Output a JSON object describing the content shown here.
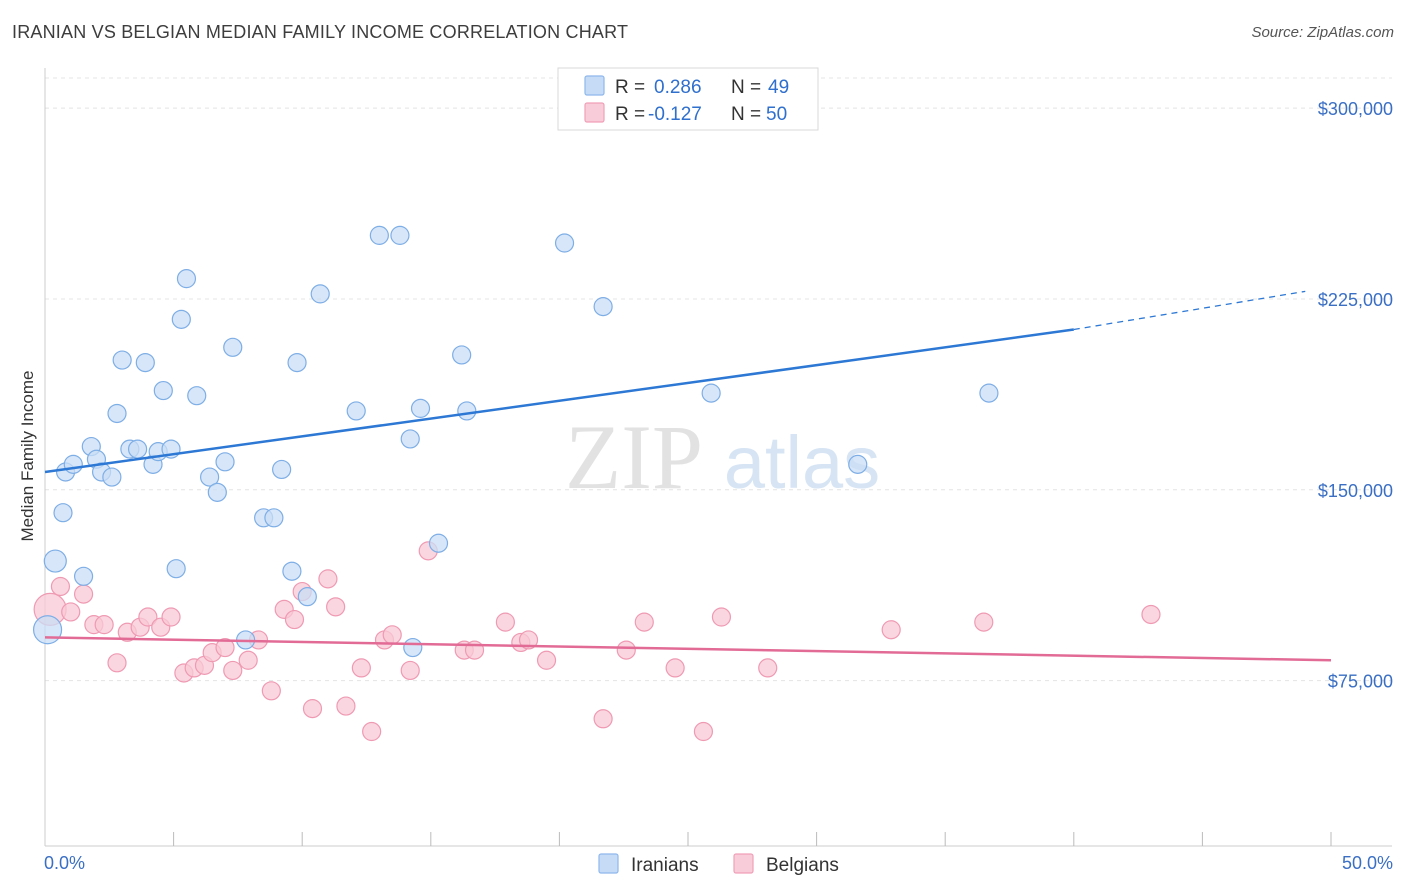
{
  "title": "IRANIAN VS BELGIAN MEDIAN FAMILY INCOME CORRELATION CHART",
  "source": "Source: ZipAtlas.com",
  "watermark": {
    "zip": "ZIP",
    "atlas": "atlas"
  },
  "chart_data": {
    "type": "scatter",
    "ylabel": "Median Family Income",
    "xlabel": "",
    "xlim": [
      0,
      50
    ],
    "ylim": [
      10000,
      315000
    ],
    "x_tick_labels": [
      "0.0%",
      "50.0%"
    ],
    "y_ticks": [
      75000,
      150000,
      225000,
      300000
    ],
    "y_tick_labels": [
      "$75,000",
      "$150,000",
      "$225,000",
      "$300,000"
    ],
    "grid": true,
    "legend": {
      "position": "top-center",
      "entries": [
        {
          "r_label": "R =",
          "r": "0.286",
          "n_label": "N =",
          "n": "49",
          "color": "#8fb8ec",
          "fill": "#c5dbf6"
        },
        {
          "r_label": "R =",
          "r": "-0.127",
          "n_label": "N =",
          "n": "50",
          "color": "#f0a0b8",
          "fill": "#f9ccd9"
        }
      ]
    },
    "series": [
      {
        "name": "Iranians",
        "color": "#7eaee6",
        "fill": "#c9ddf5",
        "line_color": "#2d78d4",
        "trend": {
          "x0": 0,
          "y0": 157000,
          "x1": 40,
          "y1": 213000,
          "dash_x1": 49,
          "dash_y1": 228000
        },
        "points": [
          [
            0.1,
            95000,
            14
          ],
          [
            0.4,
            122000,
            11
          ],
          [
            0.7,
            141000,
            9
          ],
          [
            0.8,
            157000,
            9
          ],
          [
            1.1,
            160000,
            9
          ],
          [
            1.5,
            116000,
            9
          ],
          [
            1.8,
            167000,
            9
          ],
          [
            2.0,
            162000,
            9
          ],
          [
            2.2,
            157000,
            9
          ],
          [
            2.6,
            155000,
            9
          ],
          [
            2.8,
            180000,
            9
          ],
          [
            3.0,
            201000,
            9
          ],
          [
            3.3,
            166000,
            9
          ],
          [
            3.6,
            166000,
            9
          ],
          [
            3.9,
            200000,
            9
          ],
          [
            4.2,
            160000,
            9
          ],
          [
            4.4,
            165000,
            9
          ],
          [
            4.6,
            189000,
            9
          ],
          [
            4.9,
            166000,
            9
          ],
          [
            5.1,
            119000,
            9
          ],
          [
            5.3,
            217000,
            9
          ],
          [
            5.5,
            233000,
            9
          ],
          [
            5.9,
            187000,
            9
          ],
          [
            6.4,
            155000,
            9
          ],
          [
            6.7,
            149000,
            9
          ],
          [
            7.0,
            161000,
            9
          ],
          [
            7.3,
            206000,
            9
          ],
          [
            7.8,
            91000,
            9
          ],
          [
            8.5,
            139000,
            9
          ],
          [
            8.9,
            139000,
            9
          ],
          [
            9.2,
            158000,
            9
          ],
          [
            9.6,
            118000,
            9
          ],
          [
            9.8,
            200000,
            9
          ],
          [
            10.2,
            108000,
            9
          ],
          [
            10.7,
            227000,
            9
          ],
          [
            12.1,
            181000,
            9
          ],
          [
            13.0,
            250000,
            9
          ],
          [
            13.8,
            250000,
            9
          ],
          [
            14.2,
            170000,
            9
          ],
          [
            14.3,
            88000,
            9
          ],
          [
            14.6,
            182000,
            9
          ],
          [
            15.3,
            129000,
            9
          ],
          [
            16.2,
            203000,
            9
          ],
          [
            16.4,
            181000,
            9
          ],
          [
            20.2,
            247000,
            9
          ],
          [
            21.7,
            222000,
            9
          ],
          [
            25.9,
            188000,
            9
          ],
          [
            31.6,
            160000,
            9
          ],
          [
            36.7,
            188000,
            9
          ]
        ]
      },
      {
        "name": "Belgians",
        "color": "#ef9ab3",
        "fill": "#f8c8d6",
        "line_color": "#e26b96",
        "trend": {
          "x0": 0,
          "y0": 92000,
          "x1": 50,
          "y1": 83000
        },
        "points": [
          [
            0.2,
            103000,
            16
          ],
          [
            0.6,
            112000,
            9
          ],
          [
            1.0,
            102000,
            9
          ],
          [
            1.5,
            109000,
            9
          ],
          [
            1.9,
            97000,
            9
          ],
          [
            2.3,
            97000,
            9
          ],
          [
            2.8,
            82000,
            9
          ],
          [
            3.2,
            94000,
            9
          ],
          [
            3.7,
            96000,
            9
          ],
          [
            4.0,
            100000,
            9
          ],
          [
            4.5,
            96000,
            9
          ],
          [
            4.9,
            100000,
            9
          ],
          [
            5.4,
            78000,
            9
          ],
          [
            5.8,
            80000,
            9
          ],
          [
            6.2,
            81000,
            9
          ],
          [
            6.5,
            86000,
            9
          ],
          [
            7.0,
            88000,
            9
          ],
          [
            7.3,
            79000,
            9
          ],
          [
            7.9,
            83000,
            9
          ],
          [
            8.3,
            91000,
            9
          ],
          [
            8.8,
            71000,
            9
          ],
          [
            9.3,
            103000,
            9
          ],
          [
            9.7,
            99000,
            9
          ],
          [
            10.0,
            110000,
            9
          ],
          [
            10.4,
            64000,
            9
          ],
          [
            11.0,
            115000,
            9
          ],
          [
            11.3,
            104000,
            9
          ],
          [
            11.7,
            65000,
            9
          ],
          [
            12.3,
            80000,
            9
          ],
          [
            12.7,
            55000,
            9
          ],
          [
            13.2,
            91000,
            9
          ],
          [
            13.5,
            93000,
            9
          ],
          [
            14.2,
            79000,
            9
          ],
          [
            14.9,
            126000,
            9
          ],
          [
            16.3,
            87000,
            9
          ],
          [
            16.7,
            87000,
            9
          ],
          [
            17.9,
            98000,
            9
          ],
          [
            18.5,
            90000,
            9
          ],
          [
            18.8,
            91000,
            9
          ],
          [
            19.5,
            83000,
            9
          ],
          [
            21.7,
            60000,
            9
          ],
          [
            22.6,
            87000,
            9
          ],
          [
            23.3,
            98000,
            9
          ],
          [
            24.5,
            80000,
            9
          ],
          [
            25.6,
            55000,
            9
          ],
          [
            26.3,
            100000,
            9
          ],
          [
            28.1,
            80000,
            9
          ],
          [
            32.9,
            95000,
            9
          ],
          [
            36.5,
            98000,
            9
          ],
          [
            43.0,
            101000,
            9
          ]
        ]
      }
    ]
  }
}
